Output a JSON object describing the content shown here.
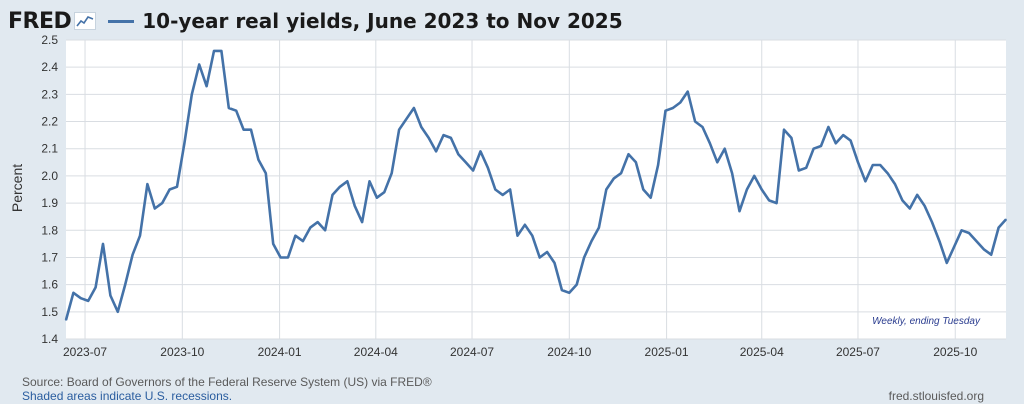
{
  "header": {
    "logo": "FRED",
    "logo_icon": "line-chart-icon",
    "title": "10-year real yields, June 2023 to Nov 2025"
  },
  "chart_data": {
    "type": "line",
    "title": "10-year real yields, June 2023 to Nov 2025",
    "xlabel": "",
    "ylabel": "Percent",
    "annotation": "Weekly, ending Tuesday",
    "ylim": [
      1.4,
      2.5
    ],
    "y_ticks": [
      "1.4",
      "1.5",
      "1.6",
      "1.7",
      "1.8",
      "1.9",
      "2.0",
      "2.1",
      "2.2",
      "2.3",
      "2.4",
      "2.5"
    ],
    "x_ticks": [
      {
        "label": "2023-07",
        "date": "2023-07-01"
      },
      {
        "label": "2023-10",
        "date": "2023-10-01"
      },
      {
        "label": "2024-01",
        "date": "2024-01-01"
      },
      {
        "label": "2024-04",
        "date": "2024-04-01"
      },
      {
        "label": "2024-07",
        "date": "2024-07-01"
      },
      {
        "label": "2024-10",
        "date": "2024-10-01"
      },
      {
        "label": "2025-01",
        "date": "2025-01-01"
      },
      {
        "label": "2025-04",
        "date": "2025-04-01"
      },
      {
        "label": "2025-07",
        "date": "2025-07-01"
      },
      {
        "label": "2025-10",
        "date": "2025-10-01"
      }
    ],
    "x_range": [
      "2023-06-13",
      "2025-11-18"
    ],
    "grid": true,
    "color": "#4472a8",
    "series": [
      {
        "x": [
          "2023-06-13",
          "2023-06-20",
          "2023-06-27",
          "2023-07-04",
          "2023-07-11",
          "2023-07-18",
          "2023-07-25",
          "2023-08-01",
          "2023-08-08",
          "2023-08-15",
          "2023-08-22",
          "2023-08-29",
          "2023-09-05",
          "2023-09-12",
          "2023-09-19",
          "2023-09-26",
          "2023-10-03",
          "2023-10-10",
          "2023-10-17",
          "2023-10-24",
          "2023-10-31",
          "2023-11-07",
          "2023-11-14",
          "2023-11-21",
          "2023-11-28",
          "2023-12-05",
          "2023-12-12",
          "2023-12-19",
          "2023-12-26",
          "2024-01-02",
          "2024-01-09",
          "2024-01-16",
          "2024-01-23",
          "2024-01-30",
          "2024-02-06",
          "2024-02-13",
          "2024-02-20",
          "2024-02-27",
          "2024-03-05",
          "2024-03-12",
          "2024-03-19",
          "2024-03-26",
          "2024-04-02",
          "2024-04-09",
          "2024-04-16",
          "2024-04-23",
          "2024-04-30",
          "2024-05-07",
          "2024-05-14",
          "2024-05-21",
          "2024-05-28",
          "2024-06-04",
          "2024-06-11",
          "2024-06-18",
          "2024-06-25",
          "2024-07-02",
          "2024-07-09",
          "2024-07-16",
          "2024-07-23",
          "2024-07-30",
          "2024-08-06",
          "2024-08-13",
          "2024-08-20",
          "2024-08-27",
          "2024-09-03",
          "2024-09-10",
          "2024-09-17",
          "2024-09-24",
          "2024-10-01",
          "2024-10-08",
          "2024-10-15",
          "2024-10-22",
          "2024-10-29",
          "2024-11-05",
          "2024-11-12",
          "2024-11-19",
          "2024-11-26",
          "2024-12-03",
          "2024-12-10",
          "2024-12-17",
          "2024-12-24",
          "2024-12-31",
          "2025-01-07",
          "2025-01-14",
          "2025-01-21",
          "2025-01-28",
          "2025-02-04",
          "2025-02-11",
          "2025-02-18",
          "2025-02-25",
          "2025-03-04",
          "2025-03-11",
          "2025-03-18",
          "2025-03-25",
          "2025-04-01",
          "2025-04-08",
          "2025-04-15",
          "2025-04-22",
          "2025-04-29",
          "2025-05-06",
          "2025-05-13",
          "2025-05-20",
          "2025-05-27",
          "2025-06-03",
          "2025-06-10",
          "2025-06-17",
          "2025-06-24",
          "2025-07-01",
          "2025-07-08",
          "2025-07-15",
          "2025-07-22",
          "2025-07-29",
          "2025-08-05",
          "2025-08-12",
          "2025-08-19",
          "2025-08-26",
          "2025-09-02",
          "2025-09-09",
          "2025-09-16",
          "2025-09-23",
          "2025-09-30",
          "2025-10-07",
          "2025-10-14",
          "2025-10-21",
          "2025-10-28",
          "2025-11-04",
          "2025-11-11",
          "2025-11-18"
        ],
        "values": [
          1.47,
          1.57,
          1.55,
          1.54,
          1.59,
          1.75,
          1.56,
          1.5,
          1.6,
          1.71,
          1.78,
          1.97,
          1.88,
          1.9,
          1.95,
          1.96,
          2.12,
          2.3,
          2.41,
          2.33,
          2.46,
          2.46,
          2.25,
          2.24,
          2.17,
          2.17,
          2.06,
          2.01,
          1.75,
          1.7,
          1.7,
          1.78,
          1.76,
          1.81,
          1.83,
          1.8,
          1.93,
          1.96,
          1.98,
          1.89,
          1.83,
          1.98,
          1.92,
          1.94,
          2.01,
          2.17,
          2.21,
          2.25,
          2.18,
          2.14,
          2.09,
          2.15,
          2.14,
          2.08,
          2.05,
          2.02,
          2.09,
          2.03,
          1.95,
          1.93,
          1.95,
          1.78,
          1.82,
          1.78,
          1.7,
          1.72,
          1.68,
          1.58,
          1.57,
          1.6,
          1.7,
          1.76,
          1.81,
          1.95,
          1.99,
          2.01,
          2.08,
          2.05,
          1.95,
          1.92,
          2.04,
          2.24,
          2.25,
          2.27,
          2.31,
          2.2,
          2.18,
          2.12,
          2.05,
          2.1,
          2.01,
          1.87,
          1.95,
          2.0,
          1.95,
          1.91,
          1.9,
          2.17,
          2.14,
          2.02,
          2.03,
          2.1,
          2.11,
          2.18,
          2.12,
          2.15,
          2.13,
          2.05,
          1.98,
          2.04,
          2.04,
          2.01,
          1.97,
          1.91,
          1.88,
          1.93,
          1.89,
          1.83,
          1.76,
          1.68,
          1.74,
          1.8,
          1.79,
          1.76,
          1.73,
          1.71,
          1.81,
          1.84
        ]
      }
    ]
  },
  "footer": {
    "source": "Source: Board of Governors of the Federal Reserve System (US) via FRED®",
    "recession_note": "Shaded areas indicate U.S. recessions.",
    "site": "fred.stlouisfed.org"
  }
}
